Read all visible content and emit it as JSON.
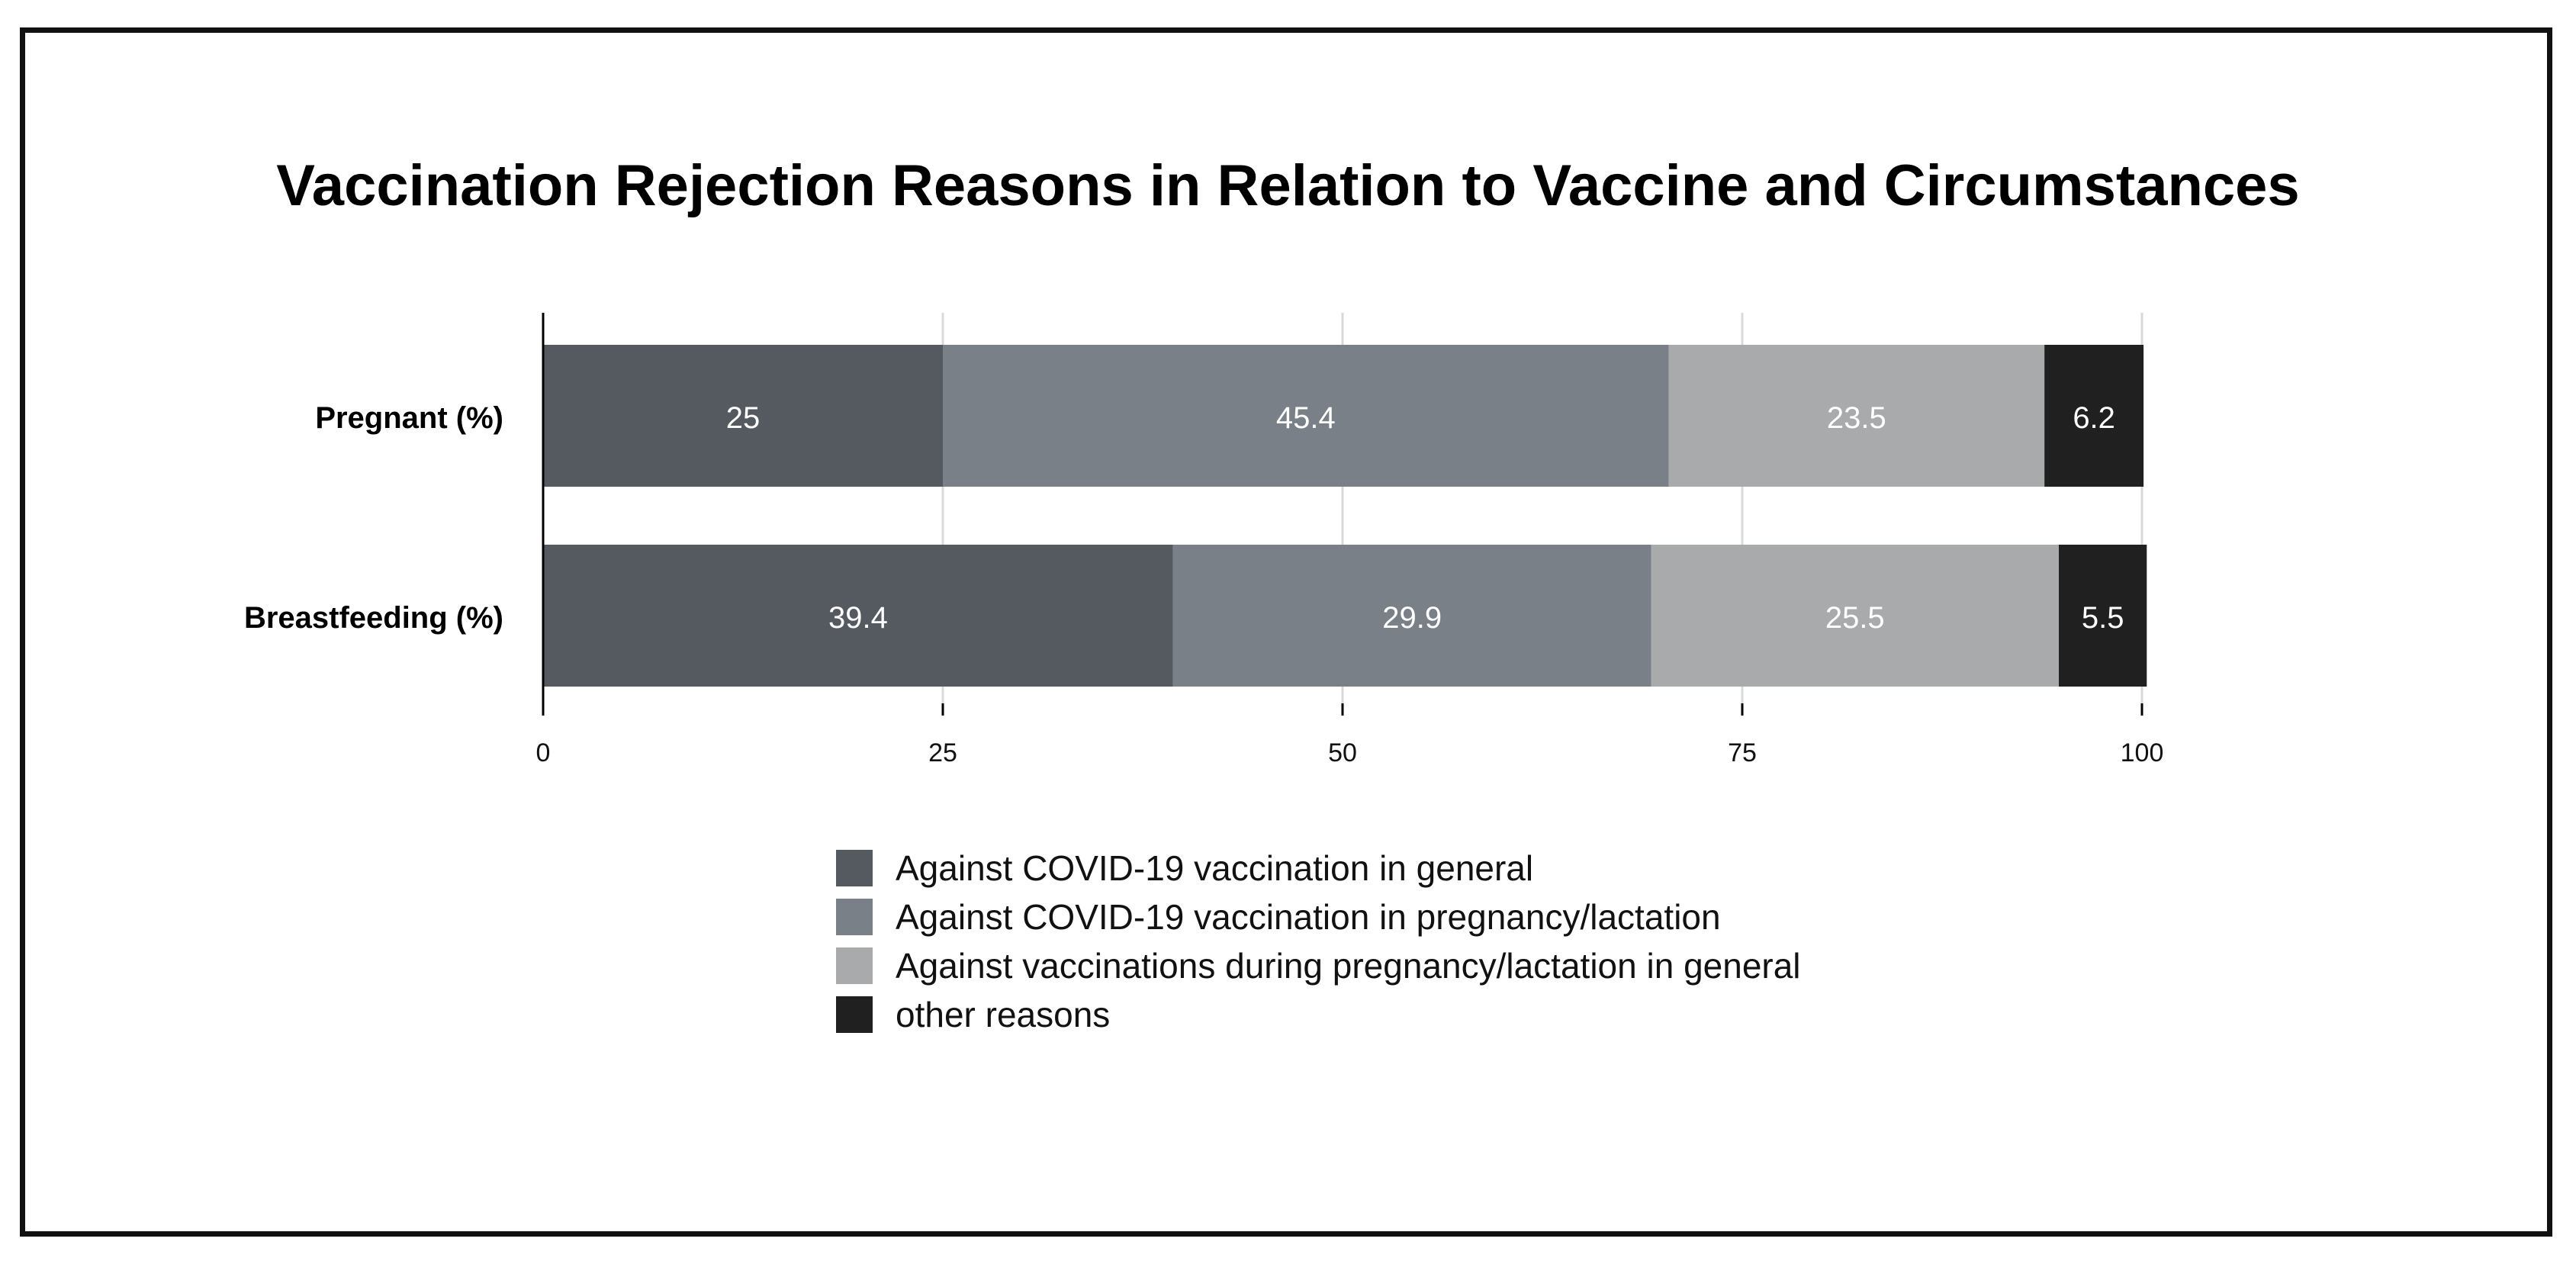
{
  "chart_data": {
    "type": "bar",
    "orientation": "horizontal",
    "stacked": true,
    "title": "Vaccination Rejection Reasons in Relation to Vaccine and Circumstances",
    "categories": [
      "Pregnant (%)",
      "Breastfeeding (%)"
    ],
    "series": [
      {
        "name": "Against COVID-19 vaccination in general",
        "color": "#555a61",
        "values": [
          25,
          39.4
        ],
        "labels": [
          "25",
          "39.4"
        ]
      },
      {
        "name": "Against COVID-19 vaccination in pregnancy/lactation",
        "color": "#7a8087",
        "values": [
          45.4,
          29.9
        ],
        "labels": [
          "45.4",
          "29.9"
        ]
      },
      {
        "name": "Against vaccinations during pregnancy/lactation in general",
        "color": "#a8aaac",
        "values": [
          23.5,
          25.5
        ],
        "labels": [
          "23.5",
          "25.5"
        ]
      },
      {
        "name": "other reasons",
        "color": "#202020",
        "values": [
          6.2,
          5.5
        ],
        "labels": [
          "6.2",
          "5.5"
        ]
      }
    ],
    "xlim": [
      0,
      100
    ],
    "xticks": [
      "0",
      "25",
      "50",
      "75",
      "100"
    ],
    "xlabel": "",
    "ylabel": "",
    "grid": true,
    "legend_position": "bottom-center"
  }
}
